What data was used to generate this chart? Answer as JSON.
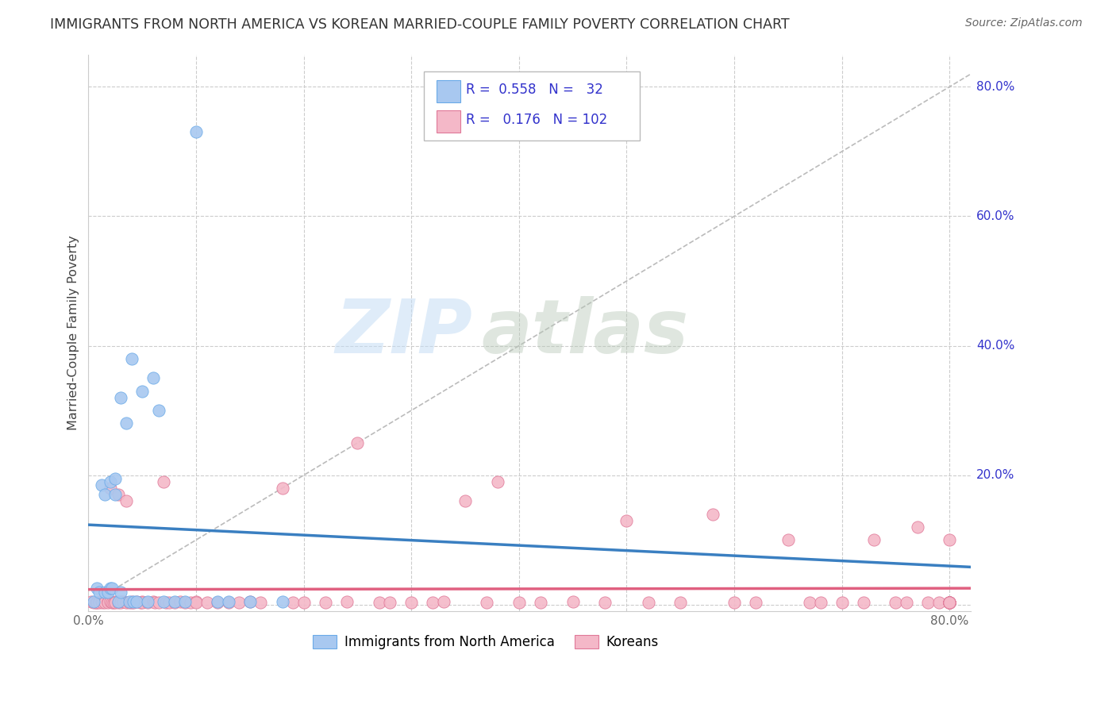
{
  "title": "IMMIGRANTS FROM NORTH AMERICA VS KOREAN MARRIED-COUPLE FAMILY POVERTY CORRELATION CHART",
  "source": "Source: ZipAtlas.com",
  "ylabel": "Married-Couple Family Poverty",
  "watermark_zip": "ZIP",
  "watermark_atlas": "atlas",
  "xlim": [
    0.0,
    0.82
  ],
  "ylim": [
    -0.01,
    0.85
  ],
  "xtick_positions": [
    0.0,
    0.1,
    0.2,
    0.3,
    0.4,
    0.5,
    0.6,
    0.7,
    0.8
  ],
  "xticklabels": [
    "0.0%",
    "",
    "",
    "",
    "",
    "",
    "",
    "",
    "80.0%"
  ],
  "ytick_positions": [
    0.0,
    0.2,
    0.4,
    0.6,
    0.8
  ],
  "yticklabels": [
    "",
    "20.0%",
    "40.0%",
    "60.0%",
    "80.0%"
  ],
  "blue_color": "#a8c8f0",
  "blue_edge": "#6aaae8",
  "blue_line": "#3a7fc1",
  "pink_color": "#f4b8c8",
  "pink_edge": "#e07898",
  "pink_line": "#e06080",
  "ref_line_color": "#bbbbbb",
  "grid_color": "#cccccc",
  "legend_text_color": "#3333cc",
  "blue_x": [
    0.005,
    0.008,
    0.01,
    0.012,
    0.015,
    0.015,
    0.018,
    0.02,
    0.02,
    0.022,
    0.025,
    0.025,
    0.028,
    0.03,
    0.03,
    0.035,
    0.038,
    0.04,
    0.042,
    0.045,
    0.05,
    0.055,
    0.06,
    0.065,
    0.07,
    0.08,
    0.09,
    0.1,
    0.12,
    0.13,
    0.15,
    0.18
  ],
  "blue_y": [
    0.005,
    0.025,
    0.02,
    0.185,
    0.17,
    0.02,
    0.02,
    0.19,
    0.025,
    0.025,
    0.195,
    0.17,
    0.005,
    0.32,
    0.02,
    0.28,
    0.005,
    0.38,
    0.005,
    0.005,
    0.33,
    0.005,
    0.35,
    0.3,
    0.005,
    0.005,
    0.005,
    0.73,
    0.005,
    0.005,
    0.005,
    0.005
  ],
  "pink_x": [
    0.003,
    0.005,
    0.007,
    0.008,
    0.01,
    0.01,
    0.012,
    0.013,
    0.015,
    0.015,
    0.018,
    0.018,
    0.02,
    0.02,
    0.022,
    0.023,
    0.025,
    0.025,
    0.028,
    0.028,
    0.03,
    0.03,
    0.032,
    0.035,
    0.035,
    0.038,
    0.04,
    0.04,
    0.042,
    0.045,
    0.048,
    0.05,
    0.05,
    0.055,
    0.06,
    0.062,
    0.065,
    0.07,
    0.072,
    0.075,
    0.08,
    0.085,
    0.09,
    0.095,
    0.1,
    0.1,
    0.11,
    0.12,
    0.13,
    0.14,
    0.15,
    0.16,
    0.18,
    0.19,
    0.2,
    0.22,
    0.24,
    0.25,
    0.27,
    0.28,
    0.3,
    0.32,
    0.33,
    0.35,
    0.37,
    0.38,
    0.4,
    0.42,
    0.45,
    0.48,
    0.5,
    0.52,
    0.55,
    0.58,
    0.6,
    0.62,
    0.65,
    0.67,
    0.68,
    0.7,
    0.72,
    0.73,
    0.75,
    0.76,
    0.77,
    0.78,
    0.79,
    0.8,
    0.8,
    0.8,
    0.8,
    0.8,
    0.8,
    0.8,
    0.8,
    0.8,
    0.8,
    0.8,
    0.8,
    0.8,
    0.8,
    0.8
  ],
  "pink_y": [
    0.005,
    0.003,
    0.003,
    0.003,
    0.005,
    0.003,
    0.005,
    0.003,
    0.005,
    0.003,
    0.005,
    0.003,
    0.005,
    0.18,
    0.003,
    0.003,
    0.005,
    0.003,
    0.17,
    0.003,
    0.005,
    0.003,
    0.005,
    0.003,
    0.16,
    0.003,
    0.005,
    0.003,
    0.003,
    0.005,
    0.003,
    0.005,
    0.003,
    0.003,
    0.005,
    0.003,
    0.003,
    0.19,
    0.003,
    0.003,
    0.003,
    0.005,
    0.003,
    0.003,
    0.005,
    0.003,
    0.003,
    0.003,
    0.003,
    0.003,
    0.005,
    0.003,
    0.18,
    0.003,
    0.003,
    0.003,
    0.005,
    0.25,
    0.003,
    0.003,
    0.003,
    0.003,
    0.005,
    0.16,
    0.003,
    0.19,
    0.003,
    0.003,
    0.005,
    0.003,
    0.13,
    0.003,
    0.003,
    0.14,
    0.003,
    0.003,
    0.1,
    0.003,
    0.003,
    0.003,
    0.003,
    0.1,
    0.003,
    0.003,
    0.12,
    0.003,
    0.003,
    0.1,
    0.003,
    0.003,
    0.003,
    0.003,
    0.003,
    0.003,
    0.003,
    0.003,
    0.003,
    0.003,
    0.003,
    0.003,
    0.003,
    0.003
  ]
}
